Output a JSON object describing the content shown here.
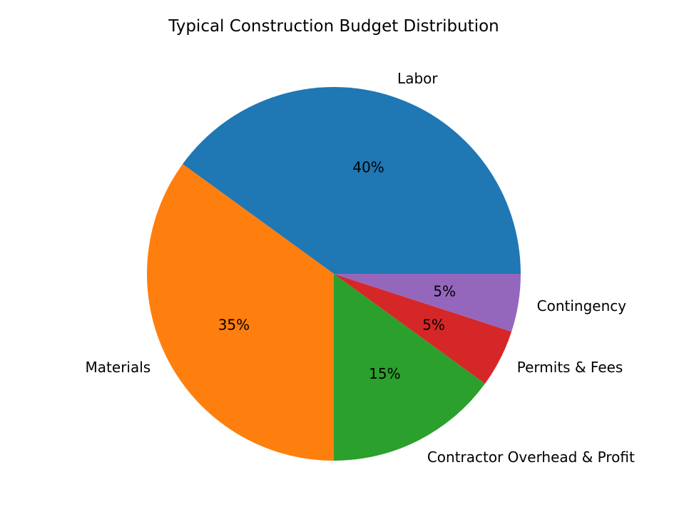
{
  "chart_data": {
    "type": "pie",
    "title": "Typical Construction Budget Distribution",
    "categories": [
      "Labor",
      "Materials",
      "Contractor Overhead & Profit",
      "Permits & Fees",
      "Contingency"
    ],
    "values": [
      40,
      35,
      15,
      5,
      5
    ],
    "value_labels": [
      "40%",
      "35%",
      "15%",
      "5%",
      "5%"
    ],
    "colors": [
      "#1f77b4",
      "#ff7f0e",
      "#2ca02c",
      "#d62728",
      "#9467bd"
    ],
    "start_angle_deg": 0,
    "direction": "counterclockwise"
  }
}
